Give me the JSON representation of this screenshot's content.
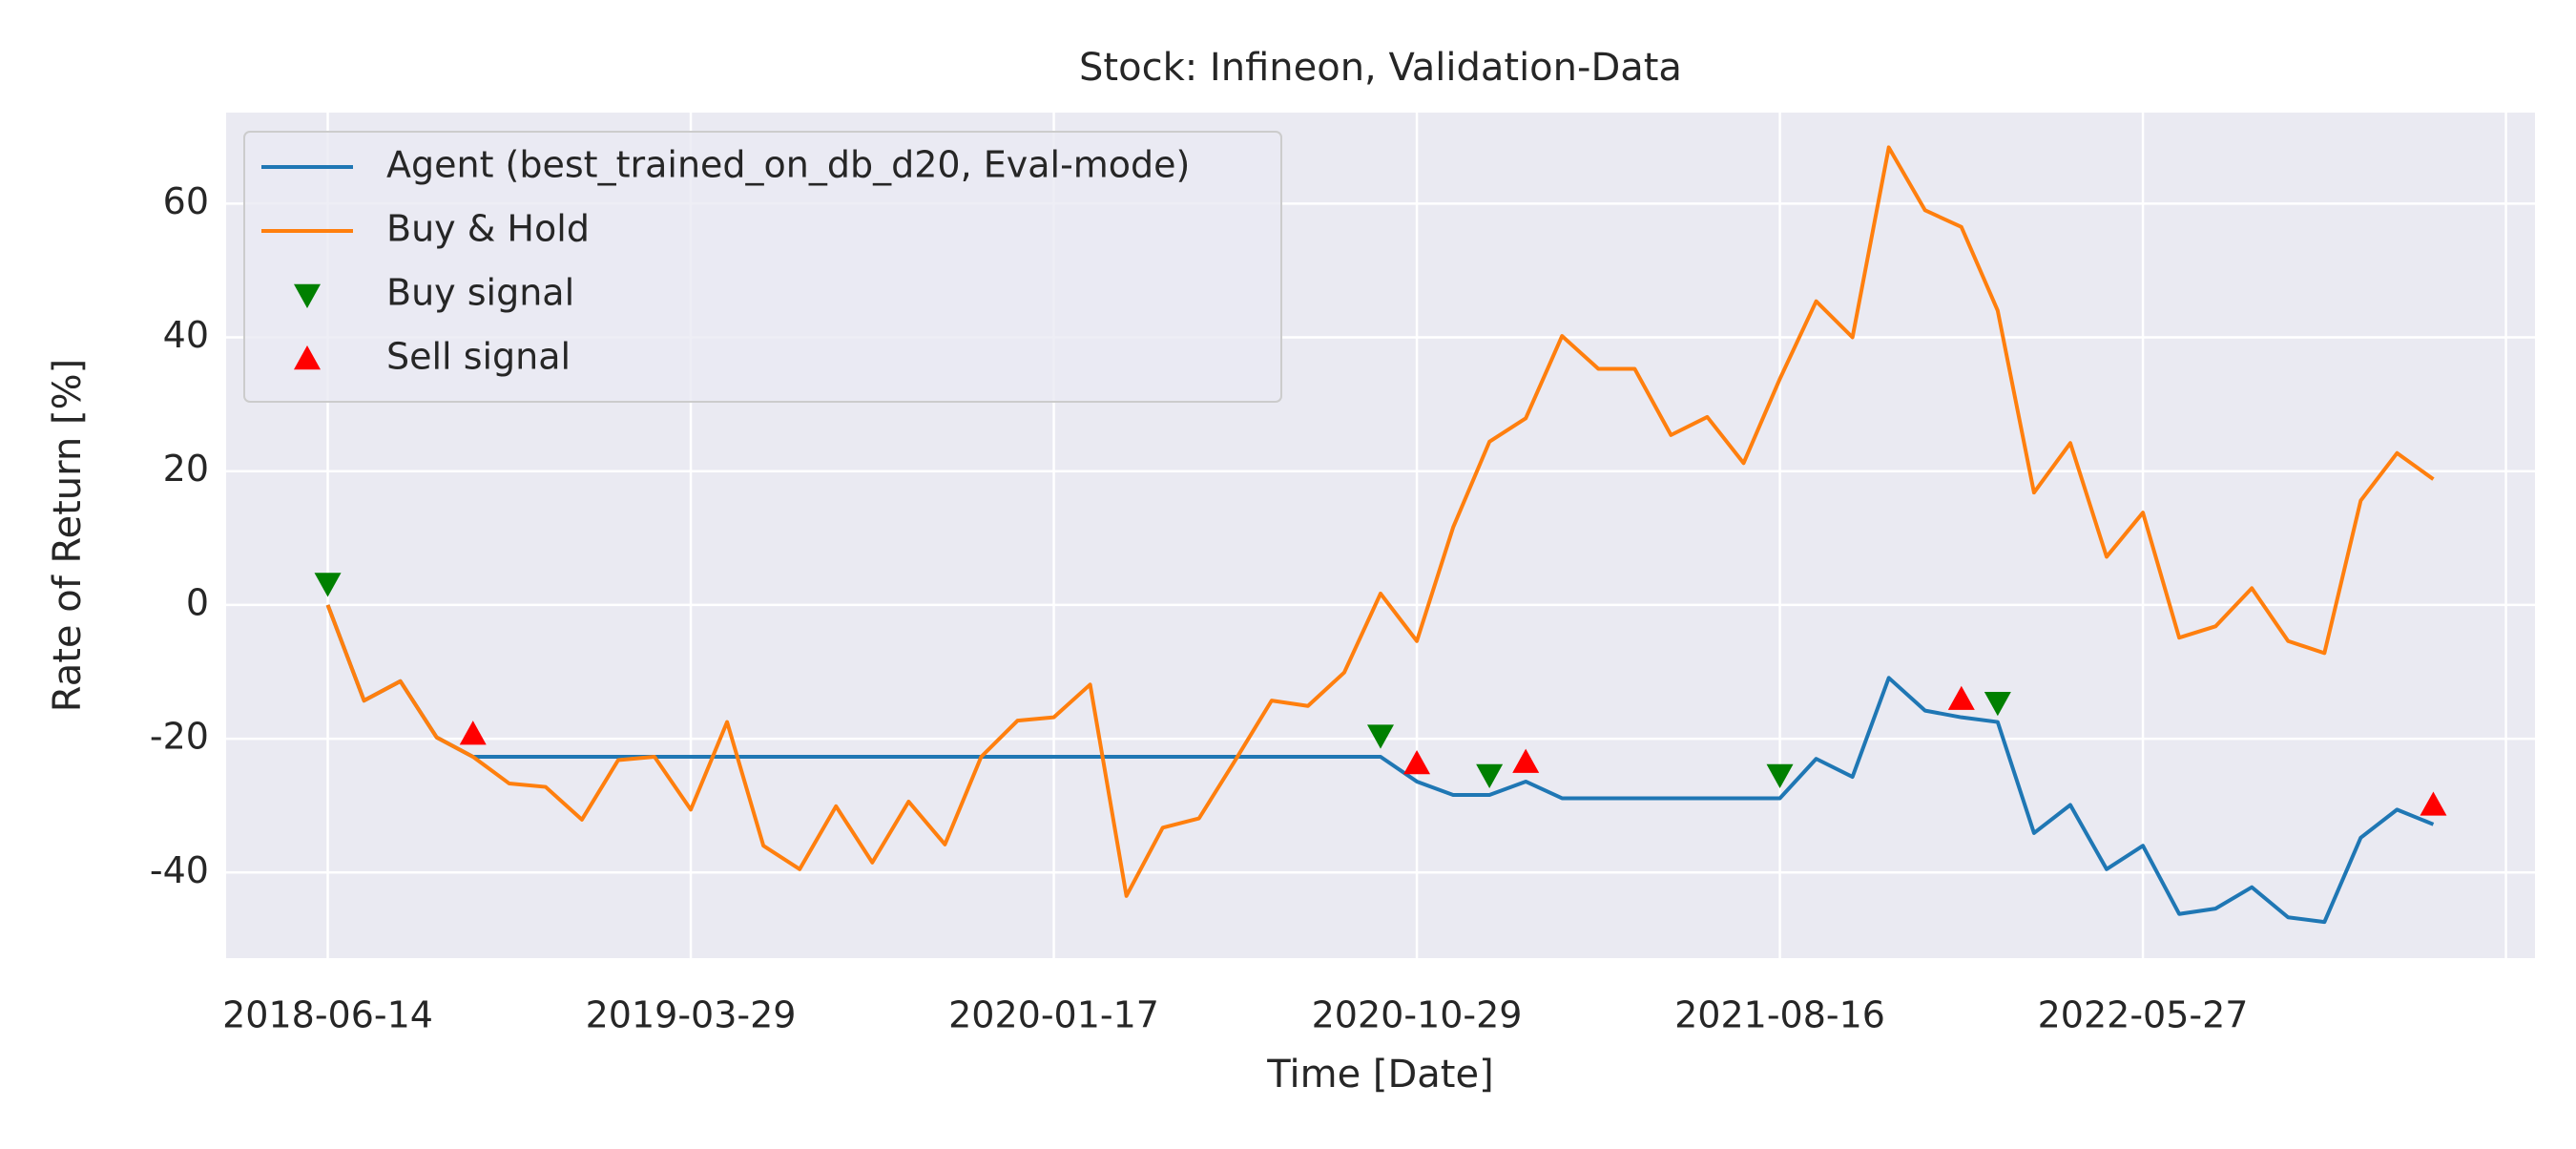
{
  "chart_data": {
    "type": "line",
    "title": "Stock: Infineon, Validation-Data",
    "x_label": "Time [Date]",
    "y_label": "Rate of Return [%]",
    "categories": [
      "2018-06-14",
      null,
      null,
      null,
      null,
      null,
      null,
      null,
      null,
      null,
      "2019-03-29",
      null,
      null,
      null,
      null,
      null,
      null,
      null,
      null,
      null,
      "2020-01-17",
      null,
      null,
      null,
      null,
      null,
      null,
      null,
      null,
      null,
      "2020-10-29",
      null,
      null,
      null,
      null,
      null,
      null,
      null,
      null,
      null,
      "2021-08-16",
      null,
      null,
      null,
      null,
      null,
      null,
      null,
      null,
      null,
      "2022-05-27",
      null,
      null,
      null,
      null,
      null,
      null,
      null,
      null
    ],
    "xlim": [
      -2.8,
      60.8
    ],
    "xticks": [
      0,
      10,
      20,
      30,
      40,
      50,
      60
    ],
    "ylim": [
      -52.8,
      73.6
    ],
    "yticks": [
      -40,
      -20,
      0,
      20,
      40,
      60
    ],
    "grid": true,
    "legend": "upper left",
    "series": [
      {
        "name": "Agent (best_trained_on_db_d20, Eval-mode)",
        "color": "#1f77b4",
        "marker": "none",
        "values": [
          0,
          -14.3,
          -11.4,
          -19.8,
          -22.7,
          -22.7,
          -22.7,
          -22.7,
          -22.7,
          -22.7,
          -22.7,
          -22.7,
          -22.7,
          -22.7,
          -22.7,
          -22.7,
          -22.7,
          -22.7,
          -22.7,
          -22.7,
          -22.7,
          -22.7,
          -22.7,
          -22.7,
          -22.7,
          -22.7,
          -22.7,
          -22.7,
          -22.7,
          -22.7,
          -26.4,
          -28.4,
          -28.4,
          -26.4,
          -28.9,
          -28.9,
          -28.9,
          -28.9,
          -28.9,
          -28.9,
          -28.9,
          -23,
          -25.7,
          -10.9,
          -15.8,
          -16.8,
          -17.5,
          -34.1,
          -29.9,
          -39.5,
          -36,
          -46.2,
          -45.4,
          -42.2,
          -46.7,
          -47.4,
          -34.8,
          -30.6,
          -32.8
        ]
      },
      {
        "name": "Buy & Hold",
        "color": "#ff7f0e",
        "marker": "none",
        "values": [
          0,
          -14.3,
          -11.4,
          -19.8,
          -22.7,
          -26.7,
          -27.2,
          -32.1,
          -23.2,
          -22.7,
          -30.6,
          -17.5,
          -36,
          -39.5,
          -30.1,
          -38.5,
          -29.4,
          -35.8,
          -22.7,
          -17.3,
          -16.8,
          -11.9,
          -43.5,
          -33.3,
          -31.9,
          -23.2,
          -14.3,
          -15.1,
          -10.1,
          1.7,
          -5.4,
          11.6,
          24.4,
          27.9,
          40.2,
          35.3,
          35.3,
          25.4,
          28.1,
          21.2,
          33.8,
          45.4,
          40,
          68.4,
          59,
          56.5,
          44,
          16.8,
          24.2,
          7.2,
          13.8,
          -4.9,
          -3.2,
          2.5,
          -5.4,
          -7.2,
          15.6,
          22.7,
          18.8
        ]
      },
      {
        "name": "Buy signal",
        "color": "green",
        "marker": "triangle-down",
        "values": [
          3.2,
          null,
          null,
          null,
          null,
          null,
          null,
          null,
          null,
          null,
          null,
          null,
          null,
          null,
          null,
          null,
          null,
          null,
          null,
          null,
          null,
          null,
          null,
          null,
          null,
          null,
          null,
          null,
          null,
          -19.5,
          null,
          null,
          -25.4,
          null,
          null,
          null,
          null,
          null,
          null,
          null,
          -25.4,
          null,
          null,
          null,
          null,
          null,
          -14.6,
          null,
          null,
          null,
          null,
          null,
          null,
          null,
          null,
          null,
          null,
          null,
          null
        ]
      },
      {
        "name": "Sell signal",
        "color": "red",
        "marker": "triangle-up",
        "values": [
          null,
          null,
          null,
          null,
          -19.3,
          null,
          null,
          null,
          null,
          null,
          null,
          null,
          null,
          null,
          null,
          null,
          null,
          null,
          null,
          null,
          null,
          null,
          null,
          null,
          null,
          null,
          null,
          null,
          null,
          null,
          -23.7,
          null,
          null,
          -23.5,
          null,
          null,
          null,
          null,
          null,
          null,
          null,
          null,
          null,
          null,
          null,
          -14.1,
          null,
          null,
          null,
          null,
          null,
          null,
          null,
          null,
          null,
          null,
          null,
          null,
          -29.9
        ]
      }
    ]
  }
}
